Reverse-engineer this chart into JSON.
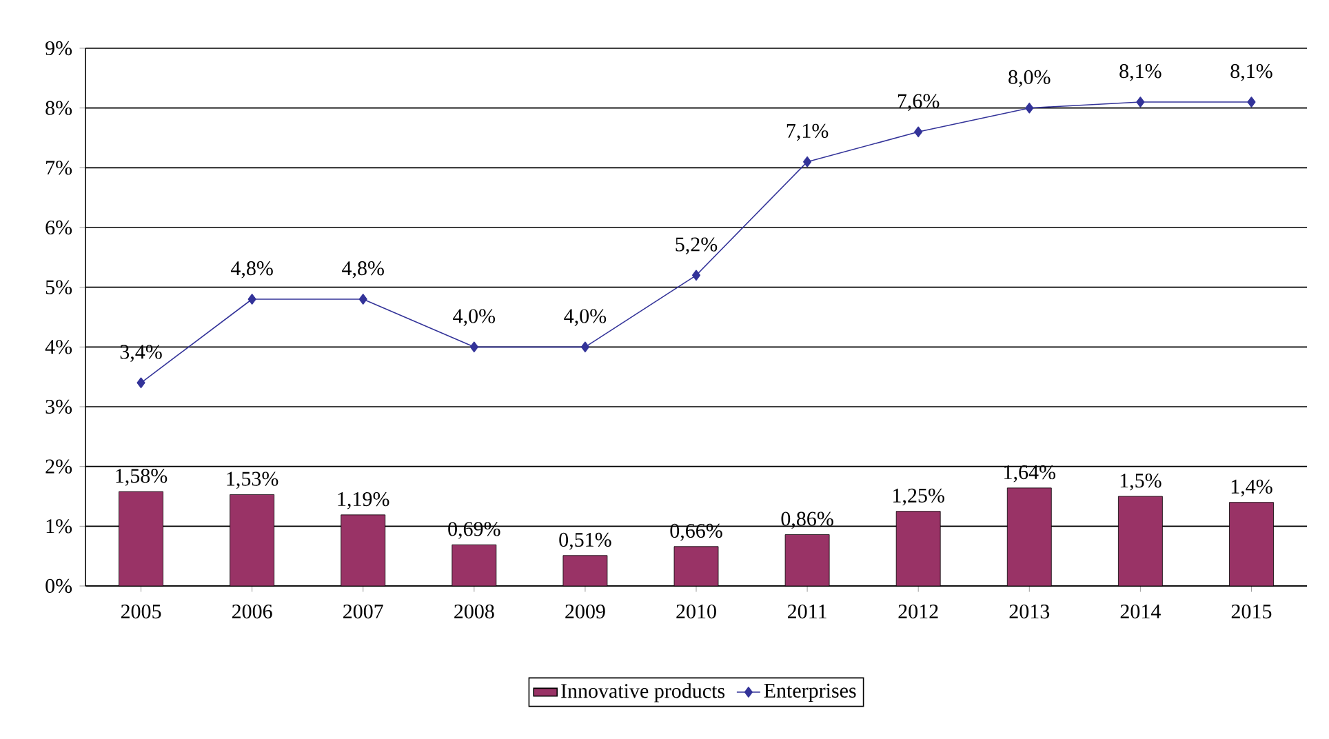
{
  "chart_data": {
    "type": "bar",
    "categories": [
      "2005",
      "2006",
      "2007",
      "2008",
      "2009",
      "2010",
      "2011",
      "2012",
      "2013",
      "2014",
      "2015"
    ],
    "series": [
      {
        "name": "Innovative products",
        "color": "#993366",
        "values": [
          1.58,
          1.53,
          1.19,
          0.69,
          0.51,
          0.66,
          0.86,
          1.25,
          1.64,
          1.5,
          1.4
        ],
        "value_labels": [
          "1,58%",
          "1,53%",
          "1,19%",
          "0,69%",
          "0,51%",
          "0,66%",
          "0,86%",
          "1,25%",
          "1,64%",
          "1,5%",
          "1,4%"
        ]
      },
      {
        "name": "Enterprises",
        "type": "line",
        "color": "#333399",
        "marker": "diamond",
        "values": [
          3.4,
          4.8,
          4.8,
          4.0,
          4.0,
          5.2,
          7.1,
          7.6,
          8.0,
          8.1,
          8.1
        ],
        "value_labels": [
          "3,4%",
          "4,8%",
          "4,8%",
          "4,0%",
          "4,0%",
          "5,2%",
          "7,1%",
          "7,6%",
          "8,0%",
          "8,1%",
          "8,1%"
        ]
      }
    ],
    "ylim": [
      0,
      9
    ],
    "yticks": [
      {
        "value": 0,
        "label": "0%"
      },
      {
        "value": 1,
        "label": "1%"
      },
      {
        "value": 2,
        "label": "2%"
      },
      {
        "value": 3,
        "label": "3%"
      },
      {
        "value": 4,
        "label": "4%"
      },
      {
        "value": 5,
        "label": "5%"
      },
      {
        "value": 6,
        "label": "6%"
      },
      {
        "value": 7,
        "label": "7%"
      },
      {
        "value": 8,
        "label": "8%"
      },
      {
        "value": 9,
        "label": "9%"
      }
    ],
    "grid": "y",
    "legend": "bottom"
  }
}
